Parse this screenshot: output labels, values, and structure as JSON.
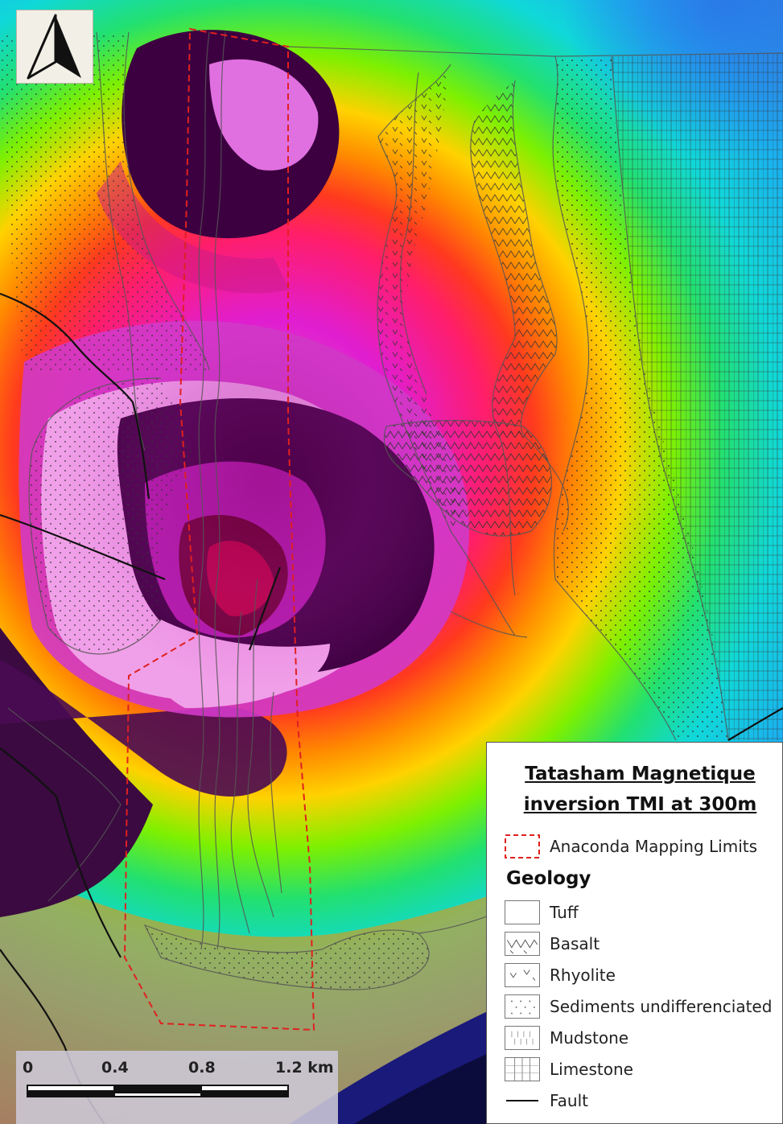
{
  "legend": {
    "title_line1": "Tatasham Magnetique",
    "title_line2": "inversion TMI at 300m",
    "mapping_limits": "Anaconda Mapping Limits",
    "geology_heading": "Geology",
    "items": [
      {
        "label": "Tuff",
        "pattern": "tuff"
      },
      {
        "label": "Basalt",
        "pattern": "basalt"
      },
      {
        "label": "Rhyolite",
        "pattern": "rhyolite"
      },
      {
        "label": "Sediments undifferenciated",
        "pattern": "sediments"
      },
      {
        "label": "Mudstone",
        "pattern": "mudstone"
      },
      {
        "label": "Limestone",
        "pattern": "limestone"
      },
      {
        "label": "Fault",
        "pattern": "fault"
      }
    ]
  },
  "scale_bar": {
    "labels": [
      "0",
      "0.4",
      "0.8",
      "1.2 km"
    ]
  },
  "north_arrow": {
    "icon": "north-arrow-icon"
  },
  "colors": {
    "mapping_limits": "#e02020",
    "fault": "#111111",
    "contact": "#555555"
  }
}
